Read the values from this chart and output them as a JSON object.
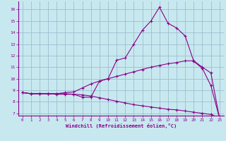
{
  "xlabel": "Windchill (Refroidissement éolien,°C)",
  "xlim": [
    -0.5,
    23.5
  ],
  "ylim": [
    6.8,
    16.7
  ],
  "xticks": [
    0,
    1,
    2,
    3,
    4,
    5,
    6,
    7,
    8,
    9,
    10,
    11,
    12,
    13,
    14,
    15,
    16,
    17,
    18,
    19,
    20,
    21,
    22,
    23
  ],
  "yticks": [
    7,
    8,
    9,
    10,
    11,
    12,
    13,
    14,
    15,
    16
  ],
  "bg_color": "#c8e8f0",
  "line_color": "#880088",
  "grid_color": "#9bbfcf",
  "line1_x": [
    0,
    1,
    2,
    3,
    4,
    5,
    6,
    7,
    8,
    9,
    10,
    11,
    12,
    13,
    14,
    15,
    16,
    17,
    18,
    19,
    20,
    21,
    22,
    23
  ],
  "line1_y": [
    8.8,
    8.7,
    8.7,
    8.7,
    8.65,
    8.65,
    8.65,
    8.4,
    8.4,
    9.8,
    10.0,
    11.6,
    11.8,
    13.0,
    14.2,
    15.0,
    16.2,
    14.8,
    14.4,
    13.7,
    11.5,
    10.9,
    9.4,
    6.6
  ],
  "line2_x": [
    0,
    1,
    2,
    3,
    4,
    5,
    6,
    7,
    8,
    9,
    10,
    11,
    12,
    13,
    14,
    15,
    16,
    17,
    18,
    19,
    20,
    21,
    22,
    23
  ],
  "line2_y": [
    8.8,
    8.7,
    8.7,
    8.7,
    8.7,
    8.8,
    8.85,
    9.2,
    9.55,
    9.8,
    10.0,
    10.2,
    10.4,
    10.6,
    10.8,
    11.0,
    11.15,
    11.3,
    11.4,
    11.55,
    11.55,
    11.0,
    10.5,
    6.6
  ],
  "line3_x": [
    0,
    1,
    2,
    3,
    4,
    5,
    6,
    7,
    8,
    9,
    10,
    11,
    12,
    13,
    14,
    15,
    16,
    17,
    18,
    19,
    20,
    21,
    22,
    23
  ],
  "line3_y": [
    8.8,
    8.7,
    8.7,
    8.7,
    8.7,
    8.7,
    8.65,
    8.6,
    8.5,
    8.35,
    8.2,
    8.05,
    7.9,
    7.75,
    7.65,
    7.55,
    7.45,
    7.35,
    7.3,
    7.2,
    7.1,
    7.0,
    6.9,
    6.6
  ]
}
